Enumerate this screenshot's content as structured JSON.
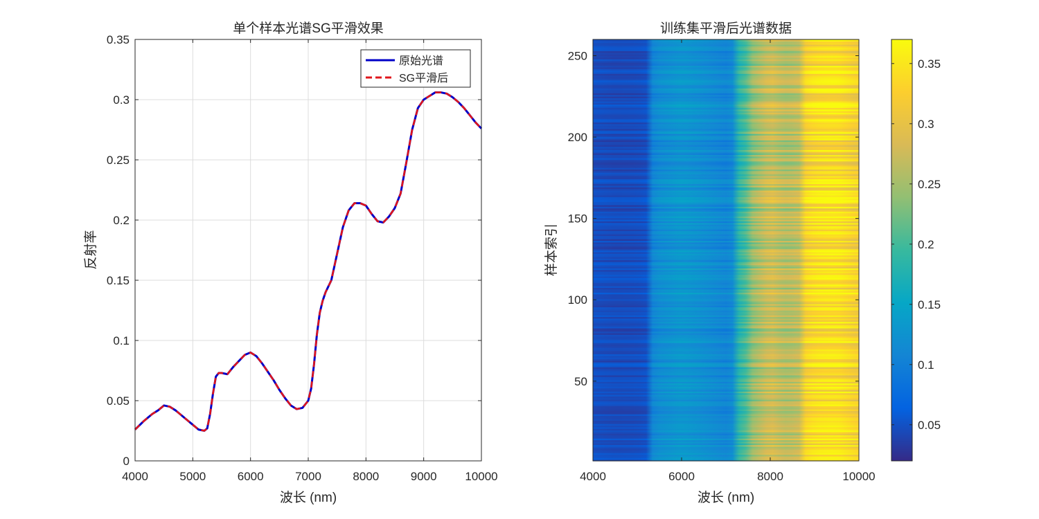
{
  "chart_data": [
    {
      "type": "line",
      "title": "单个样本光谱SG平滑效果",
      "xlabel": "波长 (nm)",
      "ylabel": "反射率",
      "xlim": [
        4000,
        10000
      ],
      "ylim": [
        0,
        0.35
      ],
      "xticks": [
        4000,
        5000,
        6000,
        7000,
        8000,
        9000,
        10000
      ],
      "yticks": [
        0,
        0.05,
        0.1,
        0.15,
        0.2,
        0.25,
        0.3,
        0.35
      ],
      "xtick_labels": [
        "4000",
        "5000",
        "6000",
        "7000",
        "8000",
        "9000",
        "10000"
      ],
      "ytick_labels": [
        "0",
        "0.05",
        "0.1",
        "0.15",
        "0.2",
        "0.25",
        "0.3",
        "0.35"
      ],
      "grid": true,
      "legend_position": "top-right",
      "series": [
        {
          "name": "原始光谱",
          "color": "#0000c8",
          "style": "solid"
        },
        {
          "name": "SG平滑后",
          "color": "#e0151b",
          "style": "dashed"
        }
      ],
      "x": [
        4000,
        4150,
        4300,
        4400,
        4500,
        4600,
        4700,
        4800,
        4900,
        5000,
        5100,
        5200,
        5250,
        5300,
        5350,
        5400,
        5450,
        5500,
        5600,
        5700,
        5800,
        5900,
        6000,
        6100,
        6200,
        6300,
        6400,
        6500,
        6600,
        6700,
        6800,
        6900,
        7000,
        7050,
        7100,
        7150,
        7200,
        7250,
        7300,
        7400,
        7500,
        7600,
        7700,
        7800,
        7900,
        8000,
        8100,
        8200,
        8300,
        8400,
        8500,
        8600,
        8700,
        8800,
        8900,
        9000,
        9100,
        9200,
        9300,
        9400,
        9500,
        9600,
        9700,
        9800,
        9900,
        10000
      ],
      "y": [
        0.026,
        0.033,
        0.039,
        0.042,
        0.046,
        0.045,
        0.042,
        0.038,
        0.034,
        0.03,
        0.026,
        0.025,
        0.027,
        0.039,
        0.056,
        0.07,
        0.073,
        0.073,
        0.072,
        0.078,
        0.083,
        0.088,
        0.09,
        0.087,
        0.081,
        0.074,
        0.067,
        0.059,
        0.052,
        0.046,
        0.043,
        0.044,
        0.05,
        0.06,
        0.08,
        0.105,
        0.123,
        0.133,
        0.14,
        0.15,
        0.172,
        0.194,
        0.208,
        0.214,
        0.214,
        0.212,
        0.205,
        0.199,
        0.198,
        0.203,
        0.21,
        0.222,
        0.248,
        0.275,
        0.293,
        0.3,
        0.303,
        0.306,
        0.306,
        0.305,
        0.302,
        0.298,
        0.293,
        0.287,
        0.281,
        0.276
      ]
    },
    {
      "type": "heatmap",
      "title": "训练集平滑后光谱数据",
      "xlabel": "波长 (nm)",
      "ylabel": "样本索引",
      "xlim": [
        4000,
        10000
      ],
      "ylim": [
        1,
        260
      ],
      "xticks": [
        4000,
        6000,
        8000,
        10000
      ],
      "yticks": [
        50,
        100,
        150,
        200,
        250
      ],
      "xtick_labels": [
        "4000",
        "6000",
        "8000",
        "10000"
      ],
      "ytick_labels": [
        "50",
        "100",
        "150",
        "200",
        "250"
      ],
      "n_samples": 260,
      "colormap": "parula",
      "colorbar": {
        "range": [
          0.02,
          0.37
        ],
        "ticks": [
          0.05,
          0.1,
          0.15,
          0.2,
          0.25,
          0.3,
          0.35
        ],
        "tick_labels": [
          "0.05",
          "0.1",
          "0.15",
          "0.2",
          "0.25",
          "0.3",
          "0.35"
        ]
      },
      "mean_spectrum": {
        "x": [
          4000,
          4500,
          5000,
          5250,
          5300,
          5500,
          6000,
          6500,
          7000,
          7150,
          7200,
          7500,
          7600,
          8000,
          8300,
          8600,
          8750,
          8800,
          9000,
          9500,
          10000
        ],
        "value": [
          0.048,
          0.045,
          0.046,
          0.05,
          0.105,
          0.118,
          0.13,
          0.12,
          0.108,
          0.115,
          0.17,
          0.21,
          0.24,
          0.28,
          0.26,
          0.265,
          0.28,
          0.325,
          0.34,
          0.345,
          0.32
        ]
      }
    }
  ]
}
